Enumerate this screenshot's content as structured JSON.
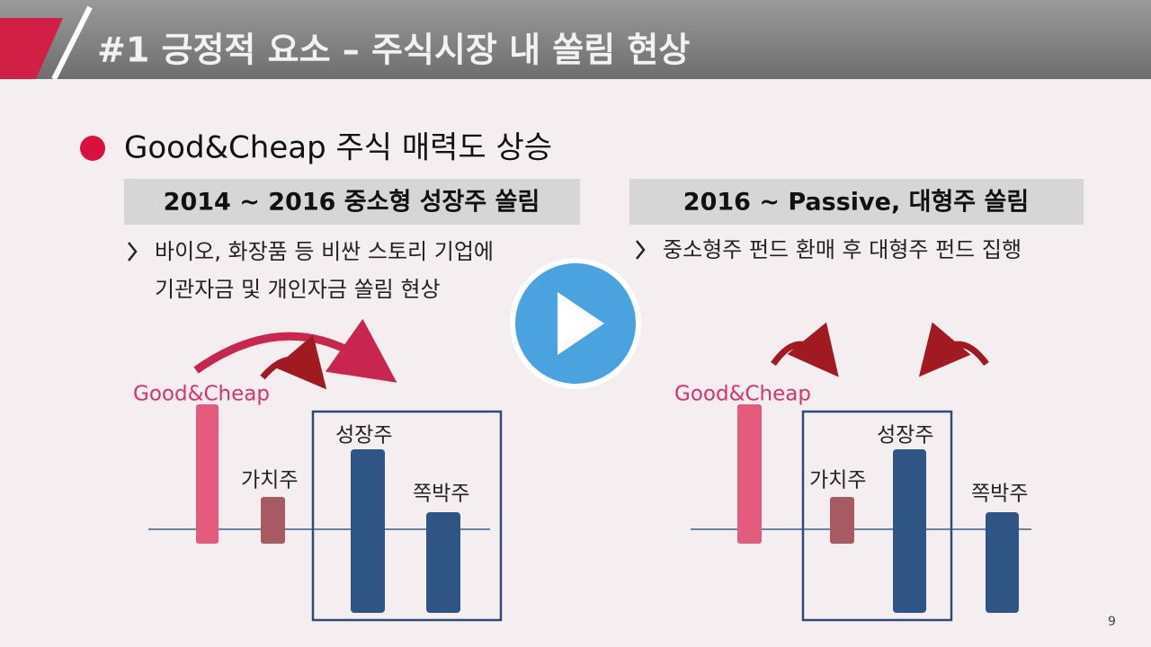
{
  "header": {
    "title": "#1 긍정적 요소 – 주식시장 내 쏠림 현상"
  },
  "bullet": {
    "text": "Good&Cheap 주식 매력도 상승"
  },
  "columns": [
    {
      "heading": "2014 ~ 2016 중소형 성장주 쏠림",
      "points": [
        "바이오, 화장품 등 비싼 스토리 기업에",
        "기관자금 및 개인자금 쏠림 현상"
      ],
      "diagram": {
        "labels": [
          "Good&Cheap",
          "가치주",
          "성장주",
          "쪽박주"
        ]
      }
    },
    {
      "heading": "2016 ~ Passive, 대형주 쏠림",
      "points": [
        "중소형주 펀드 환매 후 대형주 펀드 집행"
      ],
      "diagram": {
        "labels": [
          "Good&Cheap",
          "가치주",
          "성장주",
          "쪽박주"
        ]
      }
    }
  ],
  "page_number": "9"
}
